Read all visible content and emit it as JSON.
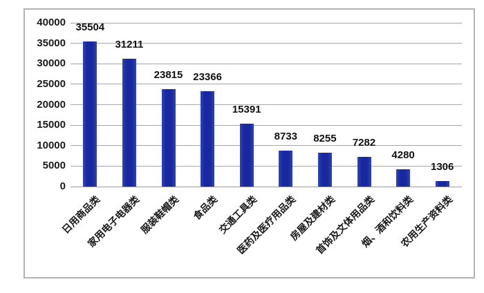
{
  "chart_data": {
    "type": "bar",
    "title": "",
    "xlabel": "",
    "ylabel": "",
    "categories": [
      "日用商品类",
      "家用电子电器类",
      "服装鞋帽类",
      "食品类",
      "交通工具类",
      "医药及医疗用品类",
      "房屋及建材类",
      "首饰及文体用品类",
      "烟、酒和饮料类",
      "农用生产资料类"
    ],
    "values": [
      35504,
      31211,
      23815,
      23366,
      15391,
      8733,
      8255,
      7282,
      4280,
      1306
    ],
    "value_labels": [
      "35504",
      "31211",
      "23815",
      "23366",
      "15391",
      "8733",
      "8255",
      "7282",
      "4280",
      "1306"
    ],
    "ylim": [
      0,
      40000
    ],
    "ytick_step": 5000,
    "ytick_labels": [
      "0",
      "5000",
      "10000",
      "15000",
      "20000",
      "25000",
      "30000",
      "35000",
      "40000"
    ],
    "grid": "horizontal",
    "legend": "none",
    "colors": {
      "bar_fill": "#18289f",
      "bar_edge": "#2e44b8",
      "gridline": "#a6a6a6",
      "axis_line": "#9c9c9c",
      "frame_border": "#b3b3b3",
      "text": "#1a1a1a",
      "background": "#ffffff"
    }
  }
}
